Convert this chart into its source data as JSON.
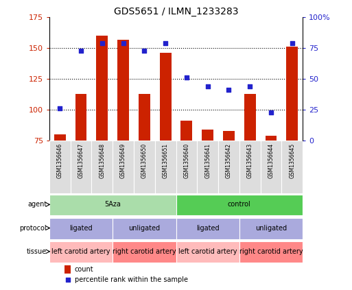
{
  "title": "GDS5651 / ILMN_1233283",
  "samples": [
    "GSM1356646",
    "GSM1356647",
    "GSM1356648",
    "GSM1356649",
    "GSM1356650",
    "GSM1356651",
    "GSM1356640",
    "GSM1356641",
    "GSM1356642",
    "GSM1356643",
    "GSM1356644",
    "GSM1356645"
  ],
  "counts": [
    80,
    113,
    160,
    157,
    113,
    146,
    91,
    84,
    83,
    113,
    79,
    151
  ],
  "percentiles": [
    26,
    73,
    79,
    79,
    73,
    79,
    51,
    44,
    41,
    44,
    23,
    79
  ],
  "ylim_left": [
    75,
    175
  ],
  "ylim_right": [
    0,
    100
  ],
  "yticks_left": [
    75,
    100,
    125,
    150,
    175
  ],
  "ytick_labels_left": [
    "75",
    "100",
    "125",
    "150",
    "175"
  ],
  "yticks_right": [
    0,
    25,
    50,
    75,
    100
  ],
  "ytick_labels_right": [
    "0",
    "25",
    "50",
    "75",
    "100%"
  ],
  "bar_color": "#CC2200",
  "dot_color": "#2222CC",
  "agent_groups": [
    {
      "label": "5Aza",
      "start": 0,
      "end": 6,
      "color": "#AADDAA"
    },
    {
      "label": "control",
      "start": 6,
      "end": 12,
      "color": "#55CC55"
    }
  ],
  "protocol_groups": [
    {
      "label": "ligated",
      "start": 0,
      "end": 3,
      "color": "#AAAADD"
    },
    {
      "label": "unligated",
      "start": 3,
      "end": 6,
      "color": "#AAAADD"
    },
    {
      "label": "ligated",
      "start": 6,
      "end": 9,
      "color": "#AAAADD"
    },
    {
      "label": "unligated",
      "start": 9,
      "end": 12,
      "color": "#AAAADD"
    }
  ],
  "tissue_groups": [
    {
      "label": "left carotid artery",
      "start": 0,
      "end": 3,
      "color": "#FFBBBB"
    },
    {
      "label": "right carotid artery",
      "start": 3,
      "end": 6,
      "color": "#FF8888"
    },
    {
      "label": "left carotid artery",
      "start": 6,
      "end": 9,
      "color": "#FFBBBB"
    },
    {
      "label": "right carotid artery",
      "start": 9,
      "end": 12,
      "color": "#FF8888"
    }
  ],
  "sample_bg_color": "#DDDDDD",
  "bg_color": "#FFFFFF",
  "spine_color": "#000000"
}
